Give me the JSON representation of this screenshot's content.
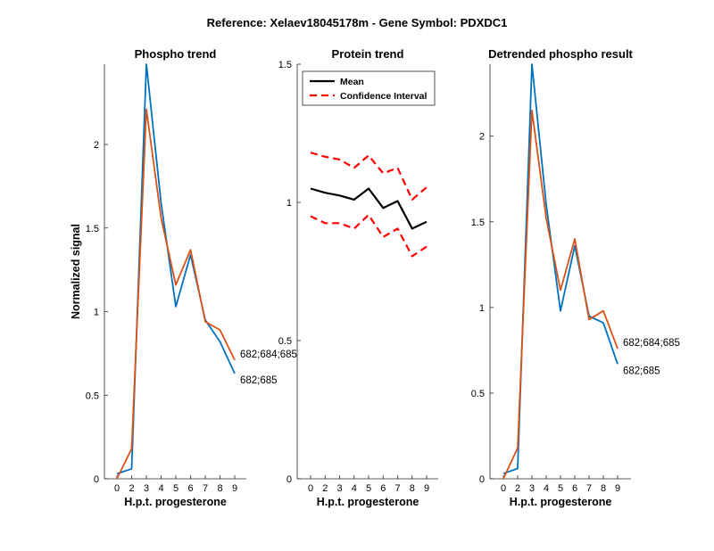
{
  "figure_title": "Reference:  Xelaev18045178m - Gene Symbol:  PDXDC1",
  "chart_data": [
    {
      "type": "line",
      "title": "Phospho trend",
      "xlabel": "H.p.t. progesterone",
      "ylabel": "Normalized signal",
      "categories": [
        "0",
        "2",
        "3",
        "4",
        "5",
        "6",
        "7",
        "8",
        "9"
      ],
      "ylim": [
        0,
        2.48
      ],
      "yticks": [
        0,
        0.5,
        1,
        1.5,
        2
      ],
      "ytick_labels": [
        "0",
        "0.5",
        "1",
        "1.5",
        "2"
      ],
      "series": [
        {
          "name": "682;685",
          "color": "#0072BD",
          "values": [
            0.03,
            0.06,
            2.48,
            1.65,
            1.03,
            1.34,
            0.95,
            0.82,
            0.63
          ]
        },
        {
          "name": "682;684;685",
          "color": "#D95319",
          "values": [
            0.0,
            0.18,
            2.21,
            1.56,
            1.16,
            1.37,
            0.94,
            0.89,
            0.71
          ]
        }
      ],
      "end_labels": [
        {
          "text": "682;684;685",
          "series": 1
        },
        {
          "text": "682;685",
          "series": 0
        }
      ]
    },
    {
      "type": "line",
      "title": "Protein trend",
      "xlabel": "H.p.t. progesterone",
      "ylabel": "",
      "categories": [
        "0",
        "2",
        "3",
        "4",
        "5",
        "6",
        "7",
        "8",
        "9"
      ],
      "ylim": [
        0,
        1.5
      ],
      "yticks": [
        0,
        0.5,
        1,
        1.5
      ],
      "ytick_labels": [
        "0",
        "0.5",
        "1",
        "1.5"
      ],
      "series": [
        {
          "name": "Mean",
          "color": "#000000",
          "style": "solid",
          "values": [
            1.05,
            1.035,
            1.025,
            1.01,
            1.05,
            0.98,
            1.005,
            0.905,
            0.93
          ]
        },
        {
          "name": "Confidence Interval",
          "color": "#FF0000",
          "style": "dashed",
          "values": [
            1.18,
            1.165,
            1.155,
            1.125,
            1.17,
            1.105,
            1.125,
            1.01,
            1.055
          ]
        },
        {
          "name": "Confidence Interval (lower)",
          "color": "#FF0000",
          "style": "dashed",
          "values": [
            0.95,
            0.925,
            0.925,
            0.905,
            0.955,
            0.875,
            0.905,
            0.805,
            0.84
          ]
        }
      ],
      "legend": {
        "position": "top-left",
        "entries": [
          "Mean",
          "Confidence Interval"
        ]
      }
    },
    {
      "type": "line",
      "title": "Detrended phospho result",
      "xlabel": "H.p.t. progesterone",
      "ylabel": "",
      "categories": [
        "0",
        "2",
        "3",
        "4",
        "5",
        "6",
        "7",
        "8",
        "9"
      ],
      "ylim": [
        0,
        2.42
      ],
      "yticks": [
        0,
        0.5,
        1,
        1.5,
        2
      ],
      "ytick_labels": [
        "0",
        "0.5",
        "1",
        "1.5",
        "2"
      ],
      "series": [
        {
          "name": "682;685",
          "color": "#0072BD",
          "values": [
            0.03,
            0.06,
            2.42,
            1.6,
            0.98,
            1.36,
            0.95,
            0.91,
            0.67
          ]
        },
        {
          "name": "682;684;685",
          "color": "#D95319",
          "values": [
            0.0,
            0.18,
            2.15,
            1.52,
            1.1,
            1.4,
            0.93,
            0.98,
            0.76
          ]
        }
      ],
      "end_labels": [
        {
          "text": "682;684;685",
          "series": 1
        },
        {
          "text": "682;685",
          "series": 0
        }
      ]
    }
  ]
}
